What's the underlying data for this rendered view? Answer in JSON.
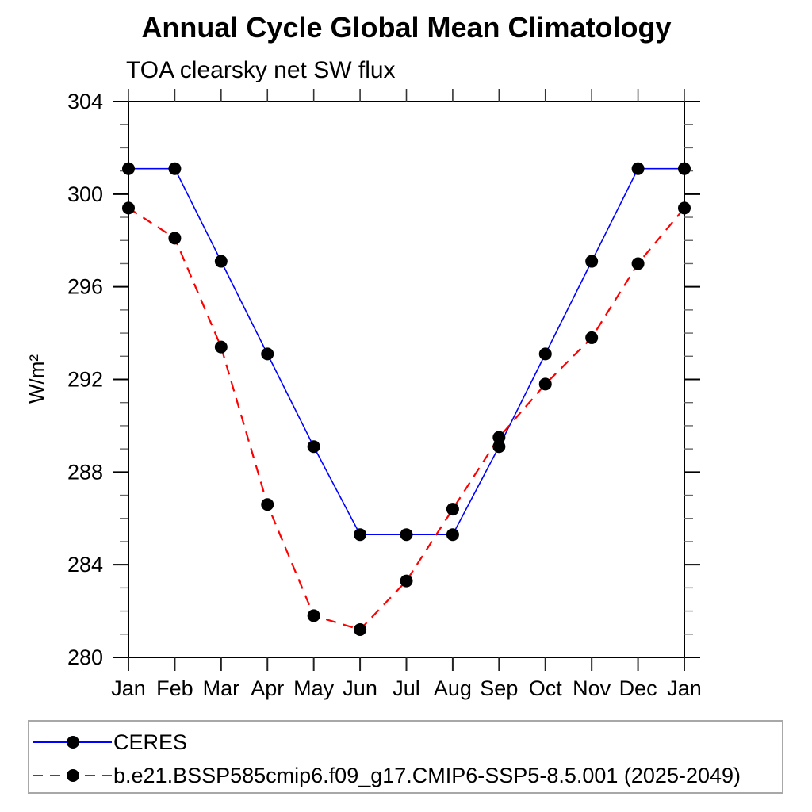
{
  "chart_data": {
    "type": "line",
    "title": "Annual Cycle Global Mean Climatology",
    "subtitle": "TOA clearsky net SW flux",
    "ylabel": "W/m²",
    "categories": [
      "Jan",
      "Feb",
      "Mar",
      "Apr",
      "May",
      "Jun",
      "Jul",
      "Aug",
      "Sep",
      "Oct",
      "Nov",
      "Dec",
      "Jan"
    ],
    "y_axis": {
      "min": 280,
      "max": 304,
      "major_tick_step": 4,
      "minor_tick_step": 1,
      "tick_labels": [
        "280",
        "284",
        "288",
        "292",
        "296",
        "300",
        "304"
      ]
    },
    "grid": false,
    "legend_position": "bottom-left-box",
    "marker": "filled-circle",
    "marker_color": "#000000",
    "series": [
      {
        "name": "CERES",
        "color": "#0000ff",
        "line_style": "solid",
        "values": [
          301.1,
          301.1,
          297.1,
          293.1,
          289.1,
          285.3,
          285.3,
          285.3,
          289.1,
          293.1,
          297.1,
          301.1,
          301.1
        ]
      },
      {
        "name": "b.e21.BSSP585cmip6.f09_g17.CMIP6-SSP5-8.5.001 (2025-2049)",
        "color": "#ff0000",
        "line_style": "dashed",
        "values": [
          299.4,
          298.1,
          293.4,
          286.6,
          281.8,
          281.2,
          283.3,
          286.4,
          289.5,
          291.8,
          293.8,
          297.0,
          299.4
        ]
      }
    ]
  }
}
